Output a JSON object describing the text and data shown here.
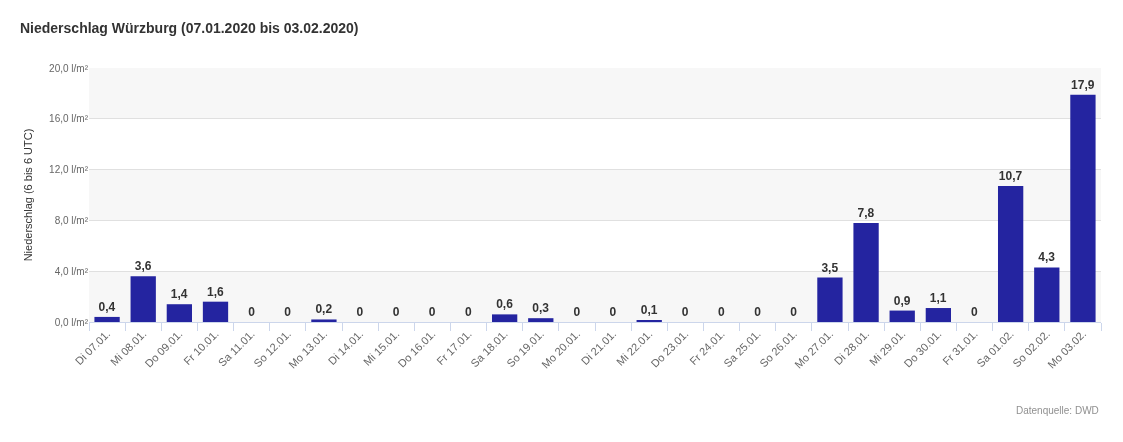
{
  "chart_data": {
    "type": "bar",
    "title": "Niederschlag Würzburg (07.01.2020 bis 03.02.2020)",
    "ylabel": "Niederschlag (6 bis 6 UTC)",
    "categories": [
      "Di 07.01.",
      "Mi 08.01.",
      "Do 09.01.",
      "Fr 10.01.",
      "Sa 11.01.",
      "So 12.01.",
      "Mo 13.01.",
      "Di 14.01.",
      "Mi 15.01.",
      "Do 16.01.",
      "Fr 17.01.",
      "Sa 18.01.",
      "So 19.01.",
      "Mo 20.01.",
      "Di 21.01.",
      "Mi 22.01.",
      "Do 23.01.",
      "Fr 24.01.",
      "Sa 25.01.",
      "So 26.01.",
      "Mo 27.01.",
      "Di 28.01.",
      "Mi 29.01.",
      "Do 30.01.",
      "Fr 31.01.",
      "Sa 01.02.",
      "So 02.02.",
      "Mo 03.02."
    ],
    "values": [
      0.4,
      3.6,
      1.4,
      1.6,
      0,
      0,
      0.2,
      0,
      0,
      0,
      0,
      0.6,
      0.3,
      0,
      0,
      0.1,
      0,
      0,
      0,
      0,
      3.5,
      7.8,
      0.9,
      1.1,
      0,
      10.7,
      4.3,
      17.9
    ],
    "value_labels": [
      "0,4",
      "3,6",
      "1,4",
      "1,6",
      "0",
      "0",
      "0,2",
      "0",
      "0",
      "0",
      "0",
      "0,6",
      "0,3",
      "0",
      "0",
      "0,1",
      "0",
      "0",
      "0",
      "0",
      "3,5",
      "7,8",
      "0,9",
      "1,1",
      "0",
      "10,7",
      "4,3",
      "17,9"
    ],
    "color": "#2424a0",
    "ylim": [
      0,
      20
    ],
    "yticks": [
      {
        "value": 0,
        "label": "0,0 l/m²"
      },
      {
        "value": 4,
        "label": "4,0 l/m²"
      },
      {
        "value": 8,
        "label": "8,0 l/m²"
      },
      {
        "value": 12,
        "label": "12,0 l/m²"
      },
      {
        "value": 16,
        "label": "16,0 l/m²"
      },
      {
        "value": 20,
        "label": "20,0 l/m²"
      }
    ],
    "grid": "y",
    "bands": [
      {
        "axis": "y",
        "from": 0,
        "to": 4,
        "color": "#f7f7f7"
      },
      {
        "axis": "y",
        "from": 8,
        "to": 12,
        "color": "#f7f7f7"
      },
      {
        "axis": "y",
        "from": 16,
        "to": 20,
        "color": "#f7f7f7"
      }
    ],
    "annotations": [
      "Datenquelle: DWD"
    ]
  }
}
